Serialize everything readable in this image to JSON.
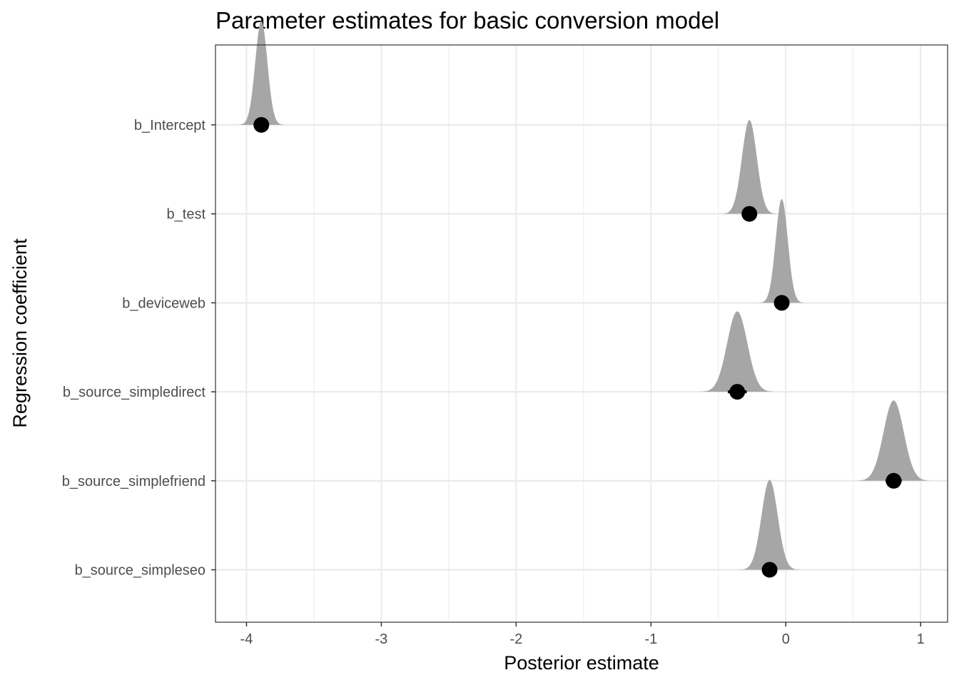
{
  "chart_data": {
    "type": "halfeye",
    "title": "Parameter estimates for basic conversion model",
    "xlabel": "Posterior estimate",
    "ylabel": "Regression coefficient",
    "xlim": [
      -4.23,
      1.2
    ],
    "x_ticks": [
      -4,
      -3,
      -2,
      -1,
      0,
      1
    ],
    "x_tick_labels": [
      "-4",
      "-3",
      "-2",
      "-1",
      "0",
      "1"
    ],
    "grid": true,
    "legend": "none",
    "colors": {
      "density": "#a6a6a6",
      "point": "#000000",
      "grid": "#ebebeb",
      "panel_border": "#333333"
    },
    "categories": [
      "b_Intercept",
      "b_test",
      "b_deviceweb",
      "b_source_simpledirect",
      "b_source_simplefriend",
      "b_source_simpleseo"
    ],
    "estimates": [
      {
        "parameter": "b_Intercept",
        "median": -3.89,
        "sd": 0.045,
        "interval": [
          -3.91,
          -3.87
        ]
      },
      {
        "parameter": "b_test",
        "median": -0.27,
        "sd": 0.055,
        "interval": [
          -0.32,
          -0.23
        ]
      },
      {
        "parameter": "b_deviceweb",
        "median": -0.03,
        "sd": 0.045,
        "interval": [
          -0.06,
          0.0
        ]
      },
      {
        "parameter": "b_source_simpledirect",
        "median": -0.36,
        "sd": 0.075,
        "interval": [
          -0.43,
          -0.29
        ]
      },
      {
        "parameter": "b_source_simplefriend",
        "median": 0.8,
        "sd": 0.075,
        "interval": [
          0.74,
          0.86
        ]
      },
      {
        "parameter": "b_source_simpleseo",
        "median": -0.12,
        "sd": 0.06,
        "interval": [
          -0.17,
          -0.07
        ]
      }
    ]
  }
}
